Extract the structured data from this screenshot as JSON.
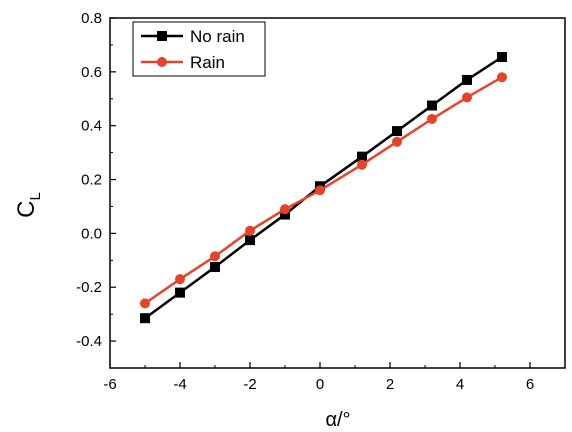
{
  "chart_data": {
    "type": "line",
    "xlabel": "α/°",
    "ylabel_main": "C",
    "ylabel_sub": "L",
    "xlim": [
      -6,
      7
    ],
    "ylim": [
      -0.5,
      0.8
    ],
    "xticks": [
      -6,
      -4,
      -2,
      0,
      2,
      4,
      6
    ],
    "yticks": [
      -0.4,
      -0.2,
      0.0,
      0.2,
      0.4,
      0.6,
      0.8
    ],
    "xtick_labels": [
      "-6",
      "-4",
      "-2",
      "0",
      "2",
      "4",
      "6"
    ],
    "ytick_labels": [
      "-0.4",
      "-0.2",
      "0.0",
      "0.2",
      "0.4",
      "0.6",
      "0.8"
    ],
    "legend_position": "top-left",
    "series": [
      {
        "name": "No rain",
        "color": "#000000",
        "marker": "square",
        "x": [
          -5,
          -4,
          -3,
          -2,
          -1,
          0,
          1.2,
          2.2,
          3.2,
          4.2,
          5.2
        ],
        "y": [
          -0.315,
          -0.22,
          -0.125,
          -0.025,
          0.07,
          0.175,
          0.285,
          0.38,
          0.475,
          0.57,
          0.655
        ]
      },
      {
        "name": "Rain",
        "color": "#e8432a",
        "marker": "circle",
        "x": [
          -5,
          -4,
          -3,
          -2,
          -1,
          0,
          1.2,
          2.2,
          3.2,
          4.2,
          5.2
        ],
        "y": [
          -0.26,
          -0.17,
          -0.085,
          0.01,
          0.09,
          0.16,
          0.255,
          0.34,
          0.425,
          0.505,
          0.58
        ]
      }
    ]
  }
}
